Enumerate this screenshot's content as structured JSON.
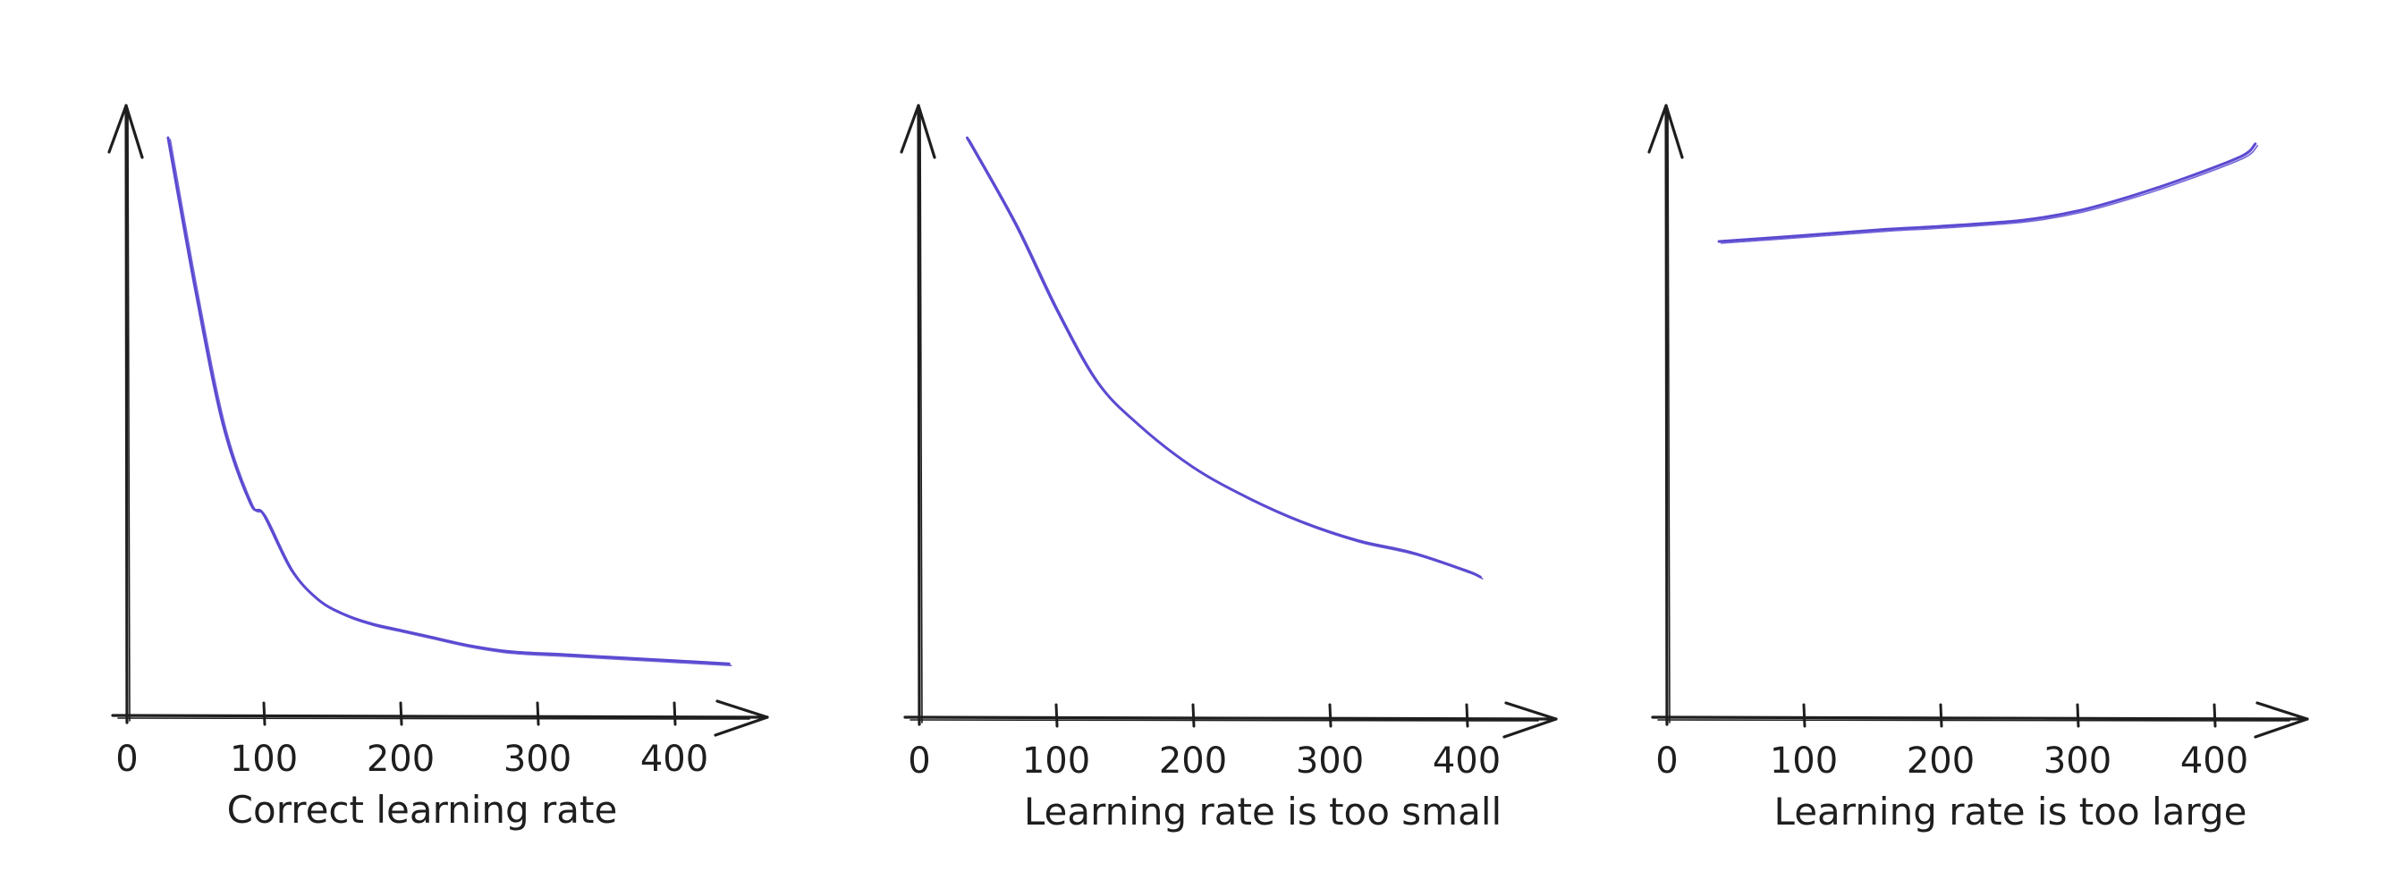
{
  "style": {
    "ink_color": "#1e1e1e",
    "series_color": "#5b4ad1",
    "background": "#ffffff"
  },
  "chart_data": [
    {
      "type": "line",
      "title": "Correct learning rate",
      "x_ticks": [
        0,
        100,
        200,
        300,
        400
      ],
      "xlim": [
        0,
        465
      ],
      "ylim": [
        0,
        100
      ],
      "grid": false,
      "legend": "none",
      "series": [
        {
          "x": [
            30,
            50,
            70,
            90,
            100,
            120,
            140,
            160,
            180,
            200,
            220,
            250,
            280,
            320,
            360,
            400,
            440
          ],
          "y": [
            95,
            70,
            48,
            35,
            33,
            24,
            19,
            16.5,
            15,
            14,
            13,
            11.5,
            10.5,
            10,
            9.5,
            9,
            8.5
          ]
        }
      ]
    },
    {
      "type": "line",
      "title": "Learning rate is too small",
      "x_ticks": [
        0,
        100,
        200,
        300,
        400
      ],
      "xlim": [
        0,
        465
      ],
      "ylim": [
        0,
        100
      ],
      "grid": false,
      "legend": "none",
      "series": [
        {
          "x": [
            35,
            70,
            100,
            130,
            160,
            200,
            240,
            280,
            320,
            360,
            400,
            410
          ],
          "y": [
            95,
            81,
            67,
            55,
            48,
            41,
            36,
            32,
            29,
            27,
            24,
            23
          ]
        }
      ]
    },
    {
      "type": "line",
      "title": "Learning rate is too large",
      "x_ticks": [
        0,
        100,
        200,
        300,
        400
      ],
      "xlim": [
        0,
        465
      ],
      "ylim": [
        0,
        100
      ],
      "grid": false,
      "legend": "none",
      "series": [
        {
          "x": [
            38,
            100,
            160,
            200,
            260,
            300,
            340,
            380,
            420,
            430
          ],
          "y": [
            78,
            79,
            80,
            80.5,
            81.5,
            83,
            85.5,
            88.5,
            92,
            94
          ]
        }
      ]
    }
  ]
}
